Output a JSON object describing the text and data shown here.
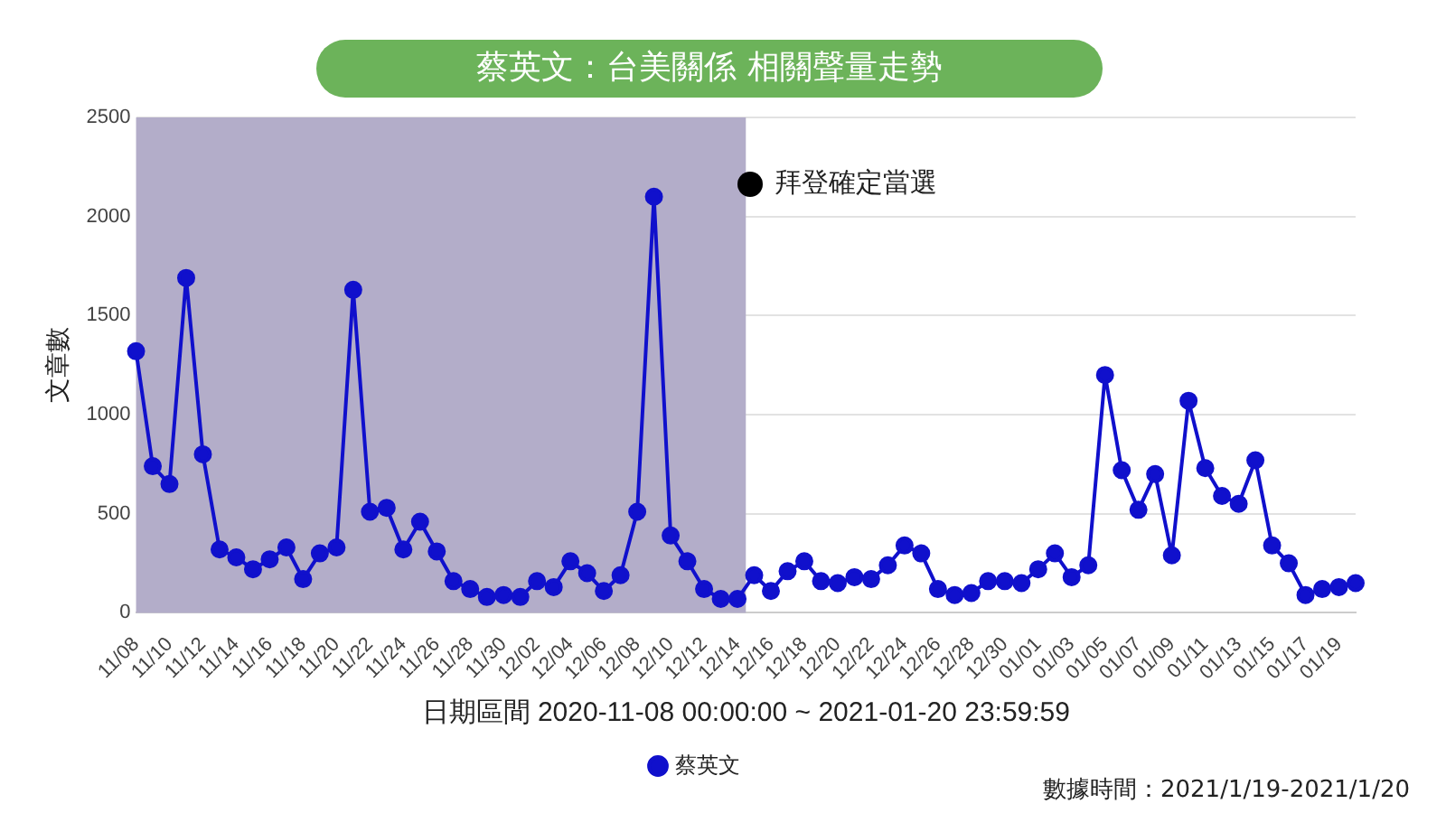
{
  "chart_data": {
    "type": "line",
    "title": "蔡英文：台美關係 相關聲量走勢",
    "xlabel": "日期區間 2020-11-08 00:00:00 ~ 2021-01-20 23:59:59",
    "ylabel": "文章數",
    "categories": [
      "11/08",
      null,
      "11/10",
      null,
      "11/12",
      null,
      "11/14",
      null,
      "11/16",
      null,
      "11/18",
      null,
      "11/20",
      null,
      "11/22",
      null,
      "11/24",
      null,
      "11/26",
      null,
      "11/28",
      null,
      "11/30",
      null,
      "12/02",
      null,
      "12/04",
      null,
      "12/06",
      null,
      "12/08",
      null,
      "12/10",
      null,
      "12/12",
      null,
      "12/14",
      null,
      "12/16",
      null,
      "12/18",
      null,
      "12/20",
      null,
      "12/22",
      null,
      "12/24",
      null,
      "12/26",
      null,
      "12/28",
      null,
      "12/30",
      null,
      "01/01",
      null,
      "01/03",
      null,
      "01/05",
      null,
      "01/07",
      null,
      "01/09",
      null,
      "01/11",
      null,
      "01/13",
      null,
      "01/15",
      null,
      "01/17",
      null,
      "01/19",
      null
    ],
    "series": [
      {
        "name": "蔡英文",
        "color": "#1010cc",
        "values": [
          1320,
          740,
          650,
          1690,
          800,
          320,
          280,
          220,
          270,
          330,
          170,
          300,
          330,
          1630,
          510,
          530,
          320,
          460,
          310,
          160,
          120,
          80,
          90,
          80,
          160,
          130,
          260,
          200,
          110,
          190,
          510,
          2100,
          390,
          260,
          120,
          70,
          70,
          190,
          110,
          210,
          260,
          160,
          150,
          180,
          170,
          240,
          340,
          300,
          120,
          90,
          100,
          160,
          160,
          150,
          220,
          300,
          180,
          240,
          1200,
          720,
          520,
          700,
          290,
          1070,
          730,
          590,
          550,
          770,
          340,
          250,
          90,
          120,
          130,
          150
        ]
      }
    ],
    "ylim": [
      0,
      2500
    ],
    "yticks": [
      0,
      500,
      1000,
      1500,
      2000,
      2500
    ],
    "grid": "y",
    "legend": "bottom",
    "marker": "circle",
    "line_style": "solid",
    "bands": [
      {
        "axis": "x",
        "from": "11/08",
        "to": "12/14",
        "label": "拜登確定當選",
        "color": "#b3adc9"
      }
    ],
    "annotations": [
      "數據時間：2021/1/19-2021/1/20"
    ]
  }
}
